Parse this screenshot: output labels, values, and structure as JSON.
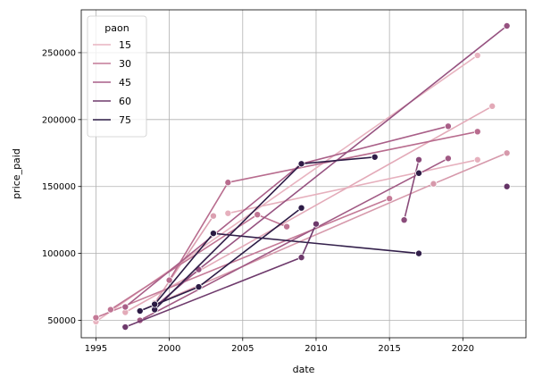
{
  "chart_data": {
    "type": "line",
    "xlabel": "date",
    "ylabel": "price_paid",
    "xlim": [
      1994,
      2024.3
    ],
    "ylim": [
      37000,
      282000
    ],
    "x_ticks": [
      "1995",
      "2000",
      "2005",
      "2010",
      "2015",
      "2020"
    ],
    "x_tick_values": [
      1995,
      2000,
      2005,
      2010,
      2015,
      2020
    ],
    "y_ticks": [
      "50000",
      "100000",
      "150000",
      "200000",
      "250000"
    ],
    "y_tick_values": [
      50000,
      100000,
      150000,
      200000,
      250000
    ],
    "grid": true,
    "legend": {
      "title": "paon",
      "position": "top-left"
    },
    "series": [
      {
        "name": "15",
        "color": "#e8b4c0",
        "points": [
          [
            1995,
            49000
          ],
          [
            2021,
            248000
          ]
        ]
      },
      {
        "name": "",
        "color": "#e3aab8",
        "points": [
          [
            1997,
            56000
          ],
          [
            2022,
            210000
          ]
        ]
      },
      {
        "name": "",
        "color": "#dba0b1",
        "points": [
          [
            1999,
            63000
          ],
          [
            2003,
            128000
          ]
        ]
      },
      {
        "name": "",
        "color": "#e6b0bd",
        "points": [
          [
            2004,
            130000
          ],
          [
            2021,
            170000
          ]
        ]
      },
      {
        "name": "",
        "color": "#d699ab",
        "points": [
          [
            1998,
            57000
          ],
          [
            2018,
            152000
          ],
          [
            2023,
            175000
          ]
        ]
      },
      {
        "name": "30",
        "color": "#c47a97",
        "points": [
          [
            1995,
            52000
          ],
          [
            2015,
            141000
          ]
        ]
      },
      {
        "name": "",
        "color": "#c07594",
        "points": [
          [
            1996,
            58000
          ],
          [
            2006,
            129000
          ],
          [
            2008,
            120000
          ]
        ]
      },
      {
        "name": "",
        "color": "#b86c8e",
        "points": [
          [
            2000,
            80000
          ],
          [
            2004,
            153000
          ],
          [
            2021,
            191000
          ]
        ]
      },
      {
        "name": "45",
        "color": "#a95f88",
        "points": [
          [
            1997,
            60000
          ],
          [
            2009,
            167000
          ],
          [
            2019,
            195000
          ]
        ]
      },
      {
        "name": "",
        "color": "#a15a84",
        "points": [
          [
            1998,
            50000
          ],
          [
            2019,
            171000
          ]
        ]
      },
      {
        "name": "",
        "color": "#965280",
        "points": [
          [
            1999,
            60000
          ],
          [
            2002,
            88000
          ],
          [
            2023,
            270000
          ]
        ]
      },
      {
        "name": "",
        "color": "#8a4b7a",
        "points": [
          [
            2016,
            125000
          ],
          [
            2017,
            170000
          ]
        ]
      },
      {
        "name": "60",
        "color": "#6e3a6c",
        "points": [
          [
            1997,
            45000
          ],
          [
            2009,
            97000
          ],
          [
            2010,
            122000
          ]
        ]
      },
      {
        "name": "",
        "color": "#643366",
        "points": [
          [
            2023,
            150000
          ]
        ]
      },
      {
        "name": "75",
        "color": "#2c1b45",
        "points": [
          [
            1998,
            57000
          ],
          [
            2002,
            75000
          ],
          [
            2009,
            134000
          ]
        ]
      },
      {
        "name": "",
        "color": "#2f1c47",
        "points": [
          [
            1999,
            58000
          ],
          [
            2009,
            167000
          ],
          [
            2014,
            172000
          ]
        ]
      },
      {
        "name": "",
        "color": "#33204b",
        "points": [
          [
            2003,
            115000
          ],
          [
            2017,
            100000
          ]
        ]
      },
      {
        "name": "",
        "color": "#2a1a42",
        "points": [
          [
            1999,
            62000
          ],
          [
            2003,
            115000
          ]
        ]
      },
      {
        "name": "",
        "color": "#2d1b44",
        "points": [
          [
            2017,
            160000
          ]
        ]
      }
    ]
  }
}
